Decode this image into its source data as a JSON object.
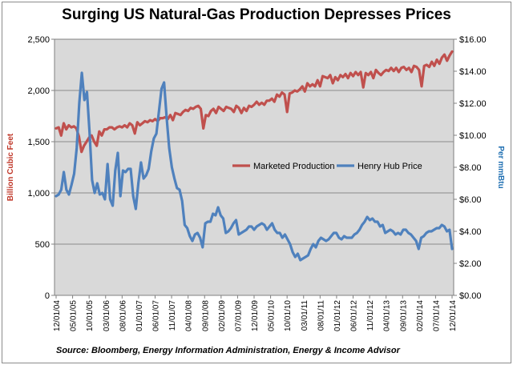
{
  "chart_data": {
    "type": "line",
    "title": "Surging US Natural-Gas Production Depresses Prices",
    "source": "Source: Bloomberg, Energy Information  Administration, Energy & Income Advisor",
    "y_left": {
      "label": "Billion Cubic Feet",
      "range": [
        0,
        2500
      ],
      "ticks": [
        "0",
        "500",
        "1,000",
        "1,500",
        "2,000",
        "2,500"
      ],
      "color": "#c0504d"
    },
    "y_right": {
      "label": "Per mmBtu",
      "range": [
        0,
        16
      ],
      "ticks": [
        "$0.00",
        "$2.00",
        "$4.00",
        "$6.00",
        "$8.00",
        "$10.00",
        "$12.00",
        "$14.00",
        "$16.00"
      ],
      "color": "#4f81bd"
    },
    "x_ticks": [
      "12/01/04",
      "05/01/05",
      "10/01/05",
      "03/01/06",
      "08/01/06",
      "01/01/07",
      "06/01/07",
      "11/01/07",
      "04/01/08",
      "09/01/08",
      "02/01/09",
      "07/01/09",
      "12/01/09",
      "05/01/10",
      "10/01/10",
      "03/01/11",
      "08/01/11",
      "01/01/12",
      "06/01/12",
      "11/01/12",
      "04/01/13",
      "09/01/13",
      "02/01/14",
      "07/01/14",
      "12/01/14"
    ],
    "legend": {
      "position": "center-right",
      "entries": [
        "Marketed Production",
        "Henry Hub Price"
      ]
    },
    "grid": true,
    "plot_background": "#d9d9d9",
    "series": [
      {
        "name": "Marketed Production",
        "axis": "left",
        "color": "#c0504d",
        "values": [
          1630,
          1640,
          1560,
          1680,
          1620,
          1660,
          1640,
          1650,
          1630,
          1550,
          1400,
          1460,
          1500,
          1540,
          1560,
          1500,
          1460,
          1600,
          1560,
          1620,
          1620,
          1640,
          1640,
          1620,
          1640,
          1650,
          1640,
          1660,
          1640,
          1680,
          1660,
          1580,
          1690,
          1660,
          1680,
          1700,
          1690,
          1710,
          1700,
          1720,
          1700,
          1730,
          1730,
          1740,
          1720,
          1760,
          1710,
          1780,
          1770,
          1760,
          1790,
          1810,
          1800,
          1830,
          1820,
          1840,
          1850,
          1820,
          1630,
          1760,
          1750,
          1800,
          1820,
          1780,
          1840,
          1820,
          1800,
          1840,
          1830,
          1820,
          1790,
          1850,
          1830,
          1780,
          1830,
          1800,
          1850,
          1840,
          1860,
          1890,
          1860,
          1880,
          1860,
          1900,
          1900,
          1920,
          1890,
          1960,
          1940,
          1980,
          1960,
          1790,
          1970,
          1980,
          2000,
          1990,
          2010,
          2040,
          1990,
          2070,
          2040,
          2060,
          2040,
          2100,
          2040,
          2140,
          2130,
          2120,
          2150,
          2070,
          2130,
          2100,
          2150,
          2130,
          2160,
          2120,
          2170,
          2140,
          2180,
          2150,
          2180,
          2030,
          2170,
          2150,
          2180,
          2120,
          2200,
          2170,
          2150,
          2180,
          2200,
          2190,
          2220,
          2190,
          2220,
          2180,
          2220,
          2230,
          2200,
          2220,
          2180,
          2240,
          2230,
          2200,
          2040,
          2240,
          2250,
          2230,
          2280,
          2240,
          2300,
          2260,
          2320,
          2350,
          2290,
          2340,
          2380
        ]
      },
      {
        "name": "Henry Hub Price",
        "axis": "right",
        "color": "#4f81bd",
        "values": [
          6.2,
          6.3,
          6.6,
          7.7,
          6.6,
          6.3,
          6.9,
          7.6,
          9.2,
          12.0,
          13.9,
          12.2,
          12.7,
          10.2,
          7.2,
          6.4,
          7.0,
          6.3,
          6.4,
          6.0,
          8.2,
          6.0,
          5.6,
          7.8,
          8.9,
          6.2,
          7.8,
          7.7,
          7.9,
          7.9,
          6.2,
          5.4,
          7.0,
          8.3,
          7.3,
          7.5,
          7.9,
          9.0,
          9.8,
          10.1,
          11.5,
          12.9,
          13.3,
          11.1,
          9.2,
          8.0,
          7.3,
          6.7,
          6.6,
          5.9,
          4.4,
          4.2,
          3.7,
          3.4,
          3.8,
          3.9,
          3.6,
          3.0,
          4.5,
          4.6,
          4.6,
          5.1,
          5.0,
          5.5,
          5.0,
          4.8,
          3.9,
          4.0,
          4.2,
          4.5,
          4.7,
          3.8,
          3.9,
          4.0,
          4.1,
          4.3,
          4.3,
          4.1,
          4.3,
          4.4,
          4.5,
          4.4,
          4.1,
          4.3,
          4.5,
          4.1,
          3.9,
          3.9,
          3.6,
          3.8,
          3.5,
          3.2,
          2.7,
          2.4,
          2.6,
          2.2,
          2.3,
          2.4,
          2.5,
          2.9,
          3.2,
          3.0,
          3.4,
          3.6,
          3.5,
          3.4,
          3.5,
          3.7,
          3.9,
          3.9,
          3.6,
          3.5,
          3.7,
          3.6,
          3.6,
          3.6,
          3.8,
          3.9,
          4.1,
          4.4,
          4.6,
          4.9,
          4.7,
          4.8,
          4.6,
          4.6,
          4.3,
          4.4,
          3.9,
          4.0,
          4.1,
          4.0,
          3.8,
          3.9,
          3.8,
          4.1,
          4.1,
          3.9,
          3.8,
          3.6,
          3.4,
          2.9,
          3.6,
          3.7,
          3.9,
          4.0,
          4.0,
          4.1,
          4.2,
          4.2,
          4.4,
          4.3,
          4.0,
          4.1,
          2.9
        ]
      }
    ]
  }
}
